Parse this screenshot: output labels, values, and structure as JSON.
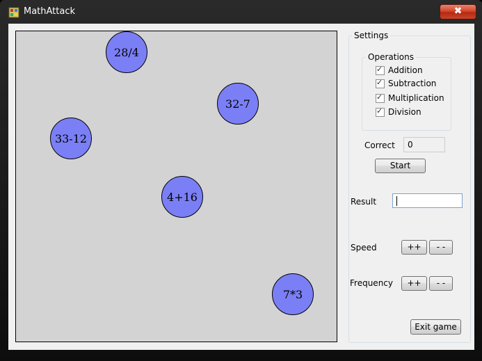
{
  "window": {
    "title": "MathAttack",
    "close_symbol": "✖",
    "icon": "app-icon"
  },
  "game": {
    "bubbles": [
      {
        "expression": "28/4"
      },
      {
        "expression": "32-7"
      },
      {
        "expression": "33-12"
      },
      {
        "expression": "4+16"
      },
      {
        "expression": "7*3"
      }
    ],
    "bubble_color": "#7b7ff5",
    "canvas_color": "#d3d3d3"
  },
  "settings": {
    "title": "Settings",
    "operations": {
      "title": "Operations",
      "items": [
        {
          "label": "Addition",
          "checked": true
        },
        {
          "label": "Subtraction",
          "checked": true
        },
        {
          "label": "Multiplication",
          "checked": true
        },
        {
          "label": "Division",
          "checked": true
        }
      ]
    },
    "correct_label": "Correct",
    "correct_value": "0",
    "start_label": "Start",
    "result_label": "Result",
    "result_value": "",
    "speed_label": "Speed",
    "frequency_label": "Frequency",
    "increase_label": "++",
    "decrease_label": "- -",
    "exit_label": "Exit game"
  }
}
